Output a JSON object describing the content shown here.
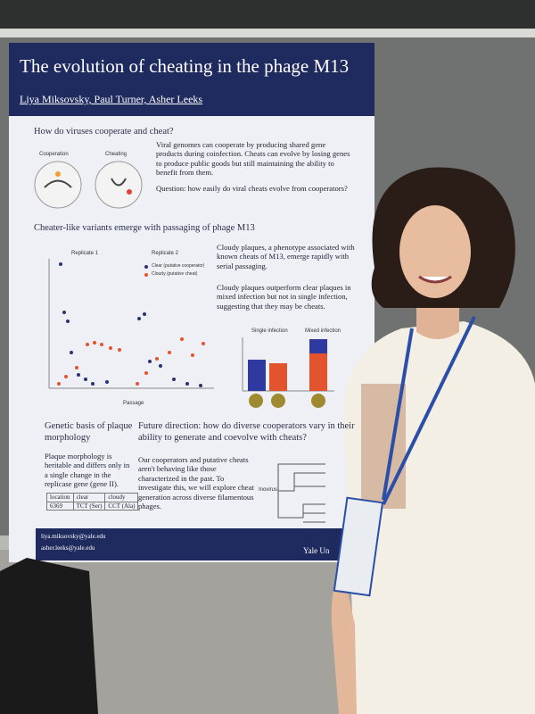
{
  "poster": {
    "title": "The evolution of cheating in the phage M13",
    "authors": "Liya Miksovsky, Paul Turner, Asher Leeks",
    "intro": {
      "heading": "How do viruses cooperate and cheat?",
      "diagram_labels": [
        "Cooperation",
        "Cheating"
      ],
      "text": "Viral genomes can cooperate by producing shared gene products during coinfection. Cheats can evolve by losing genes to produce public goods but still maintaining the ability to benefit from them.",
      "question": "Question: how easily do viral cheats evolve from cooperators?"
    },
    "results": {
      "heading": "Cheater-like variants emerge with passaging of phage M13",
      "panels": [
        "Replicate 1",
        "Replicate 2"
      ],
      "legend": [
        "Clear (putative cooperator)",
        "Cloudy (putative cheat)"
      ],
      "x_label": "Passage",
      "text1": "Cloudy plaques, a phenotype associated with known cheats of M13, emerge rapidly with serial passaging.",
      "text2": "Cloudy plaques outperform clear plaques in mixed infection but not in single infection, suggesting that they may be cheats.",
      "bar_panels": [
        "Single infection",
        "Mixed infection"
      ]
    },
    "genetics": {
      "heading": "Genetic basis of plaque morphology",
      "text": "Plaque morphology is heritable and differs only in a single change in the replicase gene (gene II).",
      "table": {
        "header": [
          "location",
          "clear",
          "cloudy"
        ],
        "rows": [
          [
            "6369",
            "TCT (Ser)",
            "CCT (Ala)"
          ]
        ]
      }
    },
    "future": {
      "heading": "Future direction: how do diverse cooperators vary in their ability to generate and coevolve with cheats?",
      "text": "Our cooperators and putative cheats aren't behaving like those characterized in the past. To investigate this, we will explore cheat generation across diverse filamentous phages.",
      "tree_label": "Inovirus"
    },
    "footer": {
      "emails": [
        "liya.miksovsky@yale.edu",
        "asher.leeks@yale.edu"
      ],
      "logo": "Yale Un"
    }
  }
}
